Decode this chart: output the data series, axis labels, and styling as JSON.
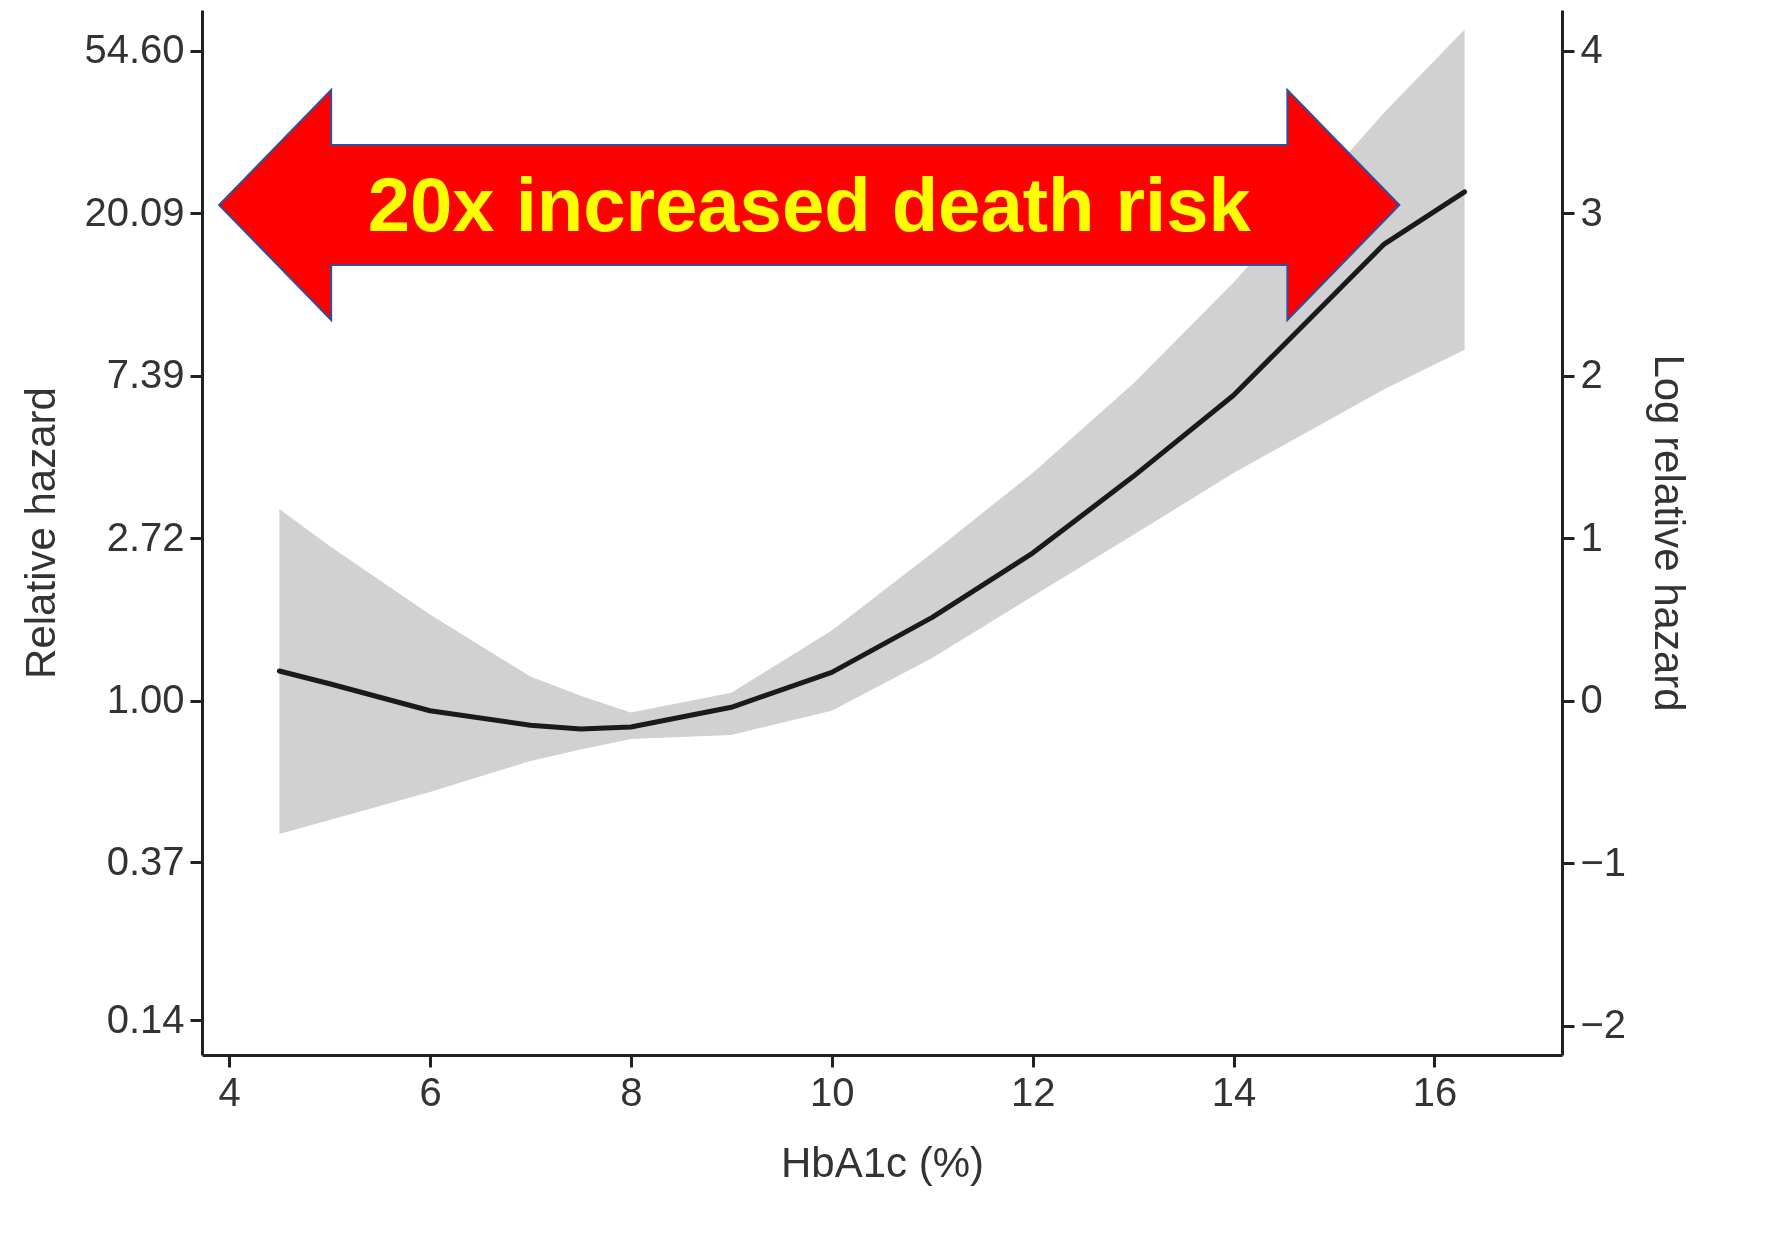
{
  "chart_data": {
    "type": "line",
    "xlabel": "HbA1c (%)",
    "ylabel": "Relative hazard",
    "y2label": "Log relative hazard",
    "annotations": [
      "20x increased death risk"
    ],
    "x": [
      4.5,
      5,
      6,
      7,
      7.5,
      8,
      9,
      10,
      11,
      12,
      13,
      14,
      15.5,
      16.3
    ],
    "series": [
      {
        "color": "#1a1a1a",
        "values": [
          1.2,
          1.11,
          0.94,
          0.86,
          0.84,
          0.85,
          0.96,
          1.19,
          1.67,
          2.48,
          3.97,
          6.55,
          16.6,
          22.9
        ],
        "lower": [
          0.44,
          0.48,
          0.57,
          0.69,
          0.74,
          0.79,
          0.81,
          0.94,
          1.3,
          1.9,
          2.77,
          4.06,
          6.8,
          8.67
        ],
        "upper": [
          3.25,
          2.59,
          1.7,
          1.16,
          1.03,
          0.93,
          1.05,
          1.54,
          2.48,
          4.06,
          7.03,
          13.1,
          37.3,
          62.2
        ]
      }
    ],
    "xlim": [
      3.73,
      17.27
    ],
    "xticks": [
      4,
      6,
      8,
      10,
      12,
      14,
      16
    ],
    "ylim": [
      0.113,
      70.1
    ],
    "yticks": [
      {
        "value": 0.14,
        "label": "0.14"
      },
      {
        "value": 0.37,
        "label": "0.37"
      },
      {
        "value": 1,
        "label": "1.00"
      },
      {
        "value": 2.72,
        "label": "2.72"
      },
      {
        "value": 7.39,
        "label": "7.39"
      },
      {
        "value": 20.09,
        "label": "20.09"
      },
      {
        "value": 54.6,
        "label": "54.60"
      }
    ],
    "y2lim": [
      -2.18,
      4.25
    ],
    "y2ticks": [
      -2,
      -1,
      0,
      1,
      2,
      3,
      4
    ],
    "log": true,
    "grid": false,
    "marker": "none",
    "line_style": "solid"
  }
}
